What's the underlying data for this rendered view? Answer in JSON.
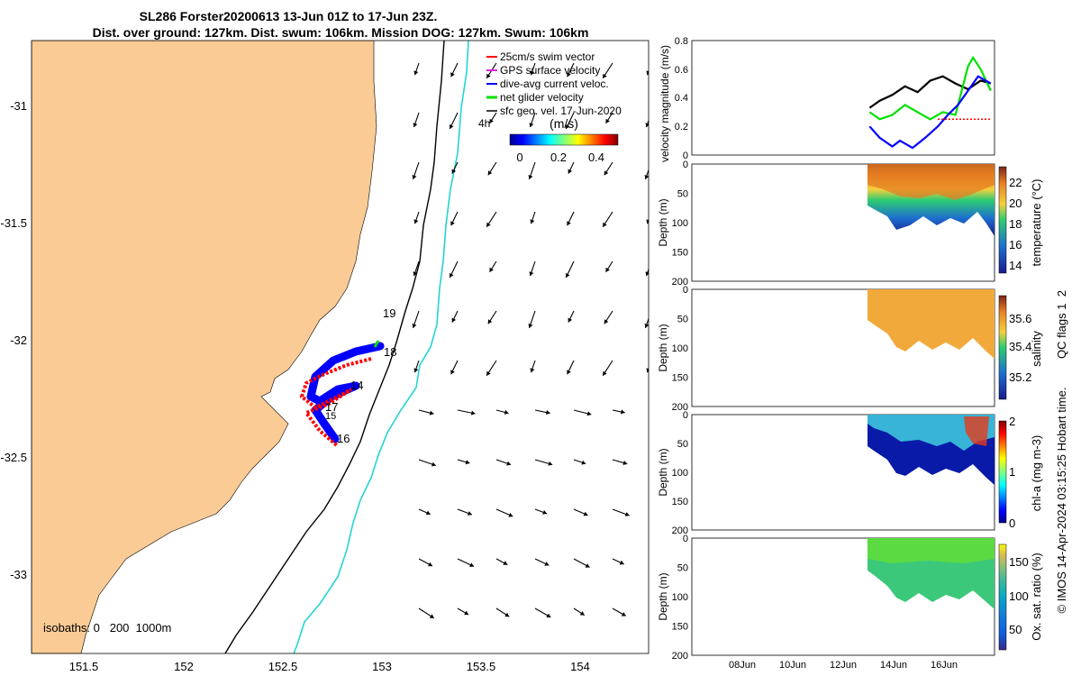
{
  "title_line1": "SL286 Forster20200613 13-Jun 01Z to 17-Jun 23Z.",
  "title_line2": "Dist. over ground: 127km. Dist. swum: 106km. Mission DOG: 127km. Swum: 106km",
  "colors": {
    "land": "#FACB95",
    "shelf_200m": "#000000",
    "isobath_1000m": "#22D4D4",
    "swim_vector": "#FF0000",
    "gps_velocity": "#E020E0",
    "dive_avg_current": "#0000FF",
    "net_glider": "#00E000",
    "sfc_geo": "#000000"
  },
  "map": {
    "legend": {
      "items": [
        {
          "label": "25cm/s swim vector",
          "color_key": "swim_vector"
        },
        {
          "label": "GPS surface velocity",
          "color_key": "gps_velocity"
        },
        {
          "label": "dive-avg current veloc.",
          "color_key": "dive_avg_current"
        },
        {
          "label": "net glider velocity",
          "color_key": "net_glider"
        },
        {
          "label": "sfc geo. vel. 17-Jun-2020",
          "color_key": "sfc_geo"
        }
      ],
      "interval_label": "4h",
      "colorbar_label": "(m/s)",
      "colorbar_ticks": [
        "0",
        "0.2",
        "0.4"
      ]
    },
    "x_ticks": [
      "151.5",
      "152",
      "152.5",
      "153",
      "153.5",
      "154"
    ],
    "y_ticks": [
      "-31",
      "-31.5",
      "-32",
      "-32.5",
      "-33"
    ],
    "day_labels": [
      "19",
      "18",
      "14",
      "17",
      "15",
      "16"
    ],
    "isobath_label": "isobaths: 0   200  1000m"
  },
  "chart_data": [
    {
      "type": "line",
      "ylabel": "velocity magnitude (m/s)",
      "ylim": [
        0,
        0.8
      ],
      "y_ticks": [
        "0",
        "0.2",
        "0.4",
        "0.6",
        "0.8"
      ],
      "x_ticks": [],
      "series": [
        {
          "color_key": "sfc_geo",
          "x_day": [
            13.1,
            13.5,
            14.0,
            14.5,
            15.0,
            15.5,
            16.0,
            16.5,
            17.0,
            17.5,
            17.9
          ],
          "values": [
            0.33,
            0.38,
            0.42,
            0.48,
            0.44,
            0.52,
            0.55,
            0.5,
            0.46,
            0.52,
            0.5
          ]
        },
        {
          "color_key": "net_glider",
          "x_day": [
            13.1,
            13.5,
            14.0,
            14.5,
            15.0,
            15.5,
            16.0,
            16.5,
            17.0,
            17.2,
            17.5,
            17.9
          ],
          "values": [
            0.3,
            0.25,
            0.28,
            0.35,
            0.3,
            0.25,
            0.3,
            0.28,
            0.62,
            0.68,
            0.6,
            0.45
          ]
        },
        {
          "color_key": "dive_avg_current",
          "x_day": [
            13.1,
            13.5,
            14.0,
            14.3,
            14.8,
            15.3,
            15.8,
            16.2,
            16.6,
            17.0,
            17.4,
            17.9
          ],
          "values": [
            0.2,
            0.12,
            0.06,
            0.1,
            0.05,
            0.12,
            0.2,
            0.28,
            0.35,
            0.45,
            0.55,
            0.5
          ]
        },
        {
          "color_key": "swim_vector",
          "x_day": [
            15.8,
            17.9
          ],
          "values": [
            0.25,
            0.25
          ]
        }
      ]
    },
    {
      "type": "heatmap",
      "ylabel": "Depth (m)",
      "ylim": [
        200,
        0
      ],
      "y_ticks": [
        "0",
        "50",
        "100",
        "150",
        "200"
      ],
      "colorbar_label": "temperature (°C)",
      "colorbar_ticks": [
        "14",
        "16",
        "18",
        "20",
        "22"
      ],
      "x_ticks": []
    },
    {
      "type": "heatmap",
      "ylabel": "Depth (m)",
      "ylim": [
        200,
        0
      ],
      "y_ticks": [
        "0",
        "50",
        "100",
        "150",
        "200"
      ],
      "colorbar_label": "salinity",
      "colorbar_ticks": [
        "35.2",
        "35.4",
        "35.6"
      ],
      "x_ticks": []
    },
    {
      "type": "heatmap",
      "ylabel": "Depth (m)",
      "ylim": [
        200,
        0
      ],
      "y_ticks": [
        "0",
        "50",
        "100",
        "150",
        "200"
      ],
      "colorbar_label": "chl-a (mg m-3)",
      "colorbar_ticks": [
        "0",
        "1",
        "2"
      ],
      "x_ticks": []
    },
    {
      "type": "heatmap",
      "ylabel": "Depth (m)",
      "ylim": [
        200,
        0
      ],
      "y_ticks": [
        "0",
        "50",
        "100",
        "150",
        "200"
      ],
      "colorbar_label": "Ox. sat. ratio (%)",
      "colorbar_ticks": [
        "50",
        "100",
        "150"
      ],
      "x_ticks": [
        "08Jun",
        "10Jun",
        "12Jun",
        "14Jun",
        "16Jun"
      ]
    }
  ],
  "qc_note": "QC flags 1  2",
  "credit": "© IMOS 14-Apr-2024 03:15:25 Hobart time."
}
